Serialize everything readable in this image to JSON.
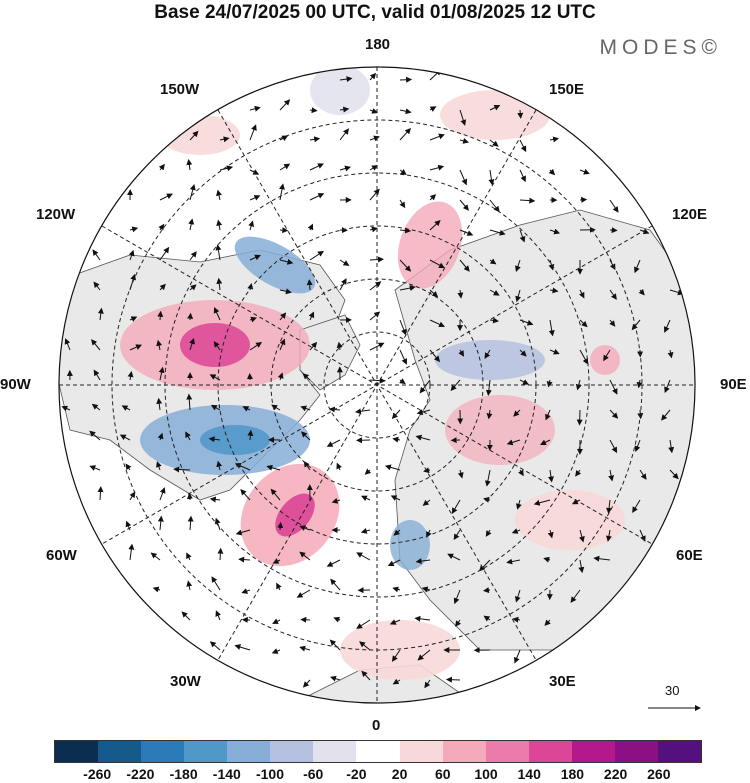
{
  "title": "Base 24/07/2025 00 UTC, valid 01/08/2025 12 UTC",
  "brand": "MODES©",
  "lon_labels": {
    "top": "180",
    "bottom": "0",
    "left": "90W",
    "right": "90E",
    "upper_left_1": "150W",
    "upper_left_2": "120W",
    "upper_right_1": "150E",
    "upper_right_2": "120E",
    "lower_left_1": "60W",
    "lower_left_2": "30W",
    "lower_right_1": "60E",
    "lower_right_2": "30E"
  },
  "reference_vector": "30",
  "colorbar": {
    "colors": [
      "#0b2d4f",
      "#155a8a",
      "#2a7bb8",
      "#4f98c8",
      "#86aed6",
      "#b5c1e0",
      "#e2e2ee",
      "#ffffff",
      "#f8d8d8",
      "#f4aab8",
      "#ec7bab",
      "#dd4597",
      "#b5188a",
      "#8c0f83",
      "#55107f"
    ],
    "ticks": [
      "-260",
      "-220",
      "-180",
      "-140",
      "-100",
      "-60",
      "-20",
      "20",
      "60",
      "100",
      "140",
      "180",
      "220",
      "260"
    ]
  }
}
